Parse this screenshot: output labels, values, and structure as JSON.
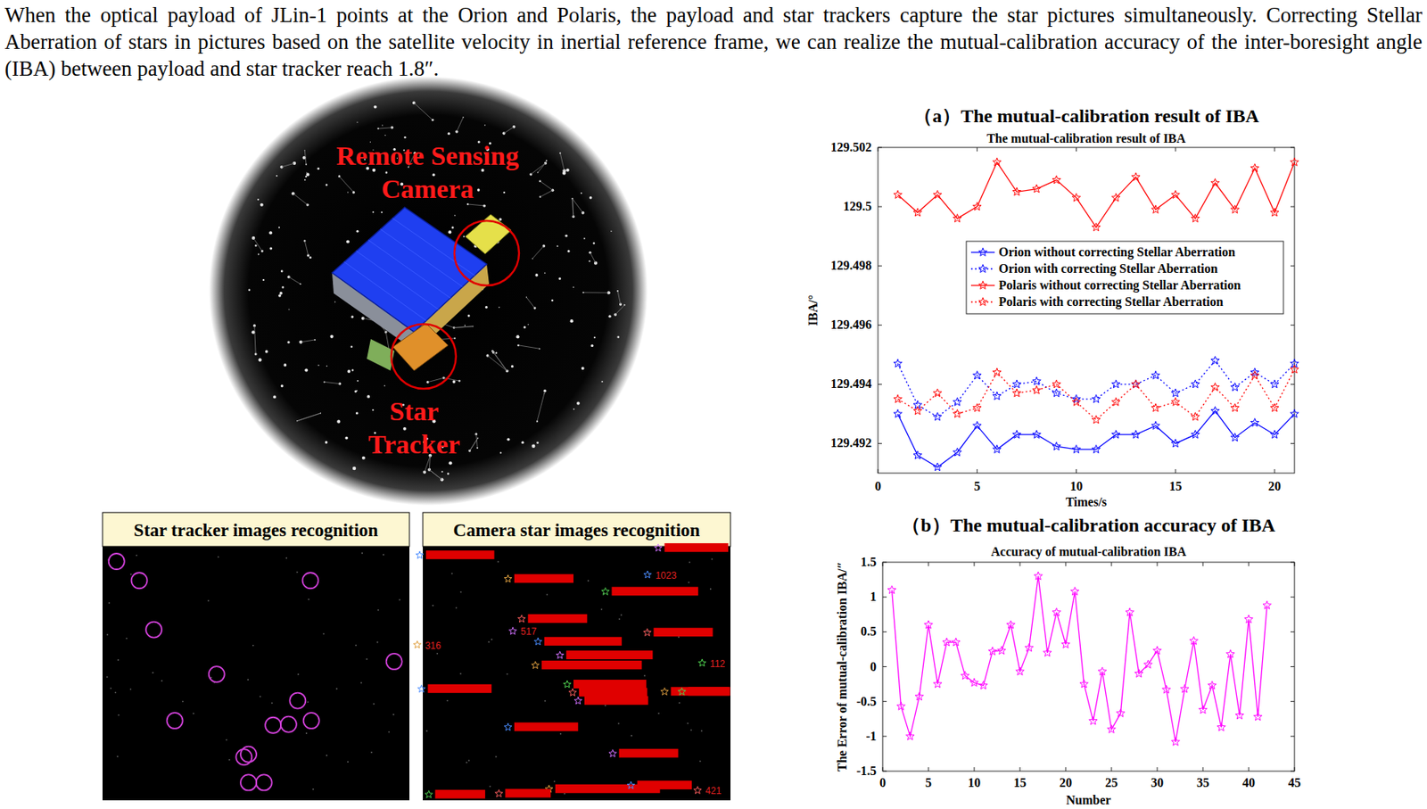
{
  "header": {
    "text": "When the optical payload of JLin-1 points at the Orion and Polaris, the payload and star trackers capture the star pictures simultaneously. Correcting Stellar Aberration of stars in pictures based on the satellite velocity in inertial reference frame, we can realize the mutual-calibration accuracy of  the inter-boresight angle (IBA) between payload and star tracker reach 1.8″."
  },
  "illustration": {
    "camera_label": [
      "Remote Sensing",
      "Camera"
    ],
    "tracker_label": [
      "Star",
      "Tracker"
    ]
  },
  "images": [
    {
      "title": "Star tracker images recognition"
    },
    {
      "title": "Camera star images recognition",
      "labels": [
        "1023",
        "517",
        "316",
        "112",
        "421"
      ]
    }
  ],
  "chart_data": [
    {
      "type": "line",
      "panel_label": "（a）The mutual-calibration result of IBA",
      "title": "The mutual-calibration result of IBA",
      "x_label": "Times/s",
      "y_label": "IBA/°",
      "x": [
        1,
        2,
        3,
        4,
        5,
        6,
        7,
        8,
        9,
        10,
        11,
        12,
        13,
        14,
        15,
        16,
        17,
        18,
        19,
        20,
        21
      ],
      "xlim": [
        0,
        21
      ],
      "xticks": [
        0,
        5,
        10,
        15,
        20
      ],
      "ylim": [
        129.491,
        129.502
      ],
      "yticks": [
        129.492,
        129.494,
        129.496,
        129.498,
        129.5,
        129.502
      ],
      "grid": false,
      "legend": "right",
      "series": [
        {
          "name": "Orion without correcting Stellar Aberration",
          "color": "#0000ff",
          "line_style": "solid",
          "marker": "star",
          "values": [
            129.493,
            129.4916,
            129.4912,
            129.4917,
            129.4926,
            129.4918,
            129.4923,
            129.4923,
            129.4919,
            129.4918,
            129.4918,
            129.4923,
            129.4923,
            129.4926,
            129.492,
            129.4923,
            129.4931,
            129.4922,
            129.4927,
            129.4923,
            129.493
          ]
        },
        {
          "name": "Orion with correcting Stellar Aberration",
          "color": "#0000ff",
          "line_style": "dotted",
          "marker": "star",
          "values": [
            129.4947,
            129.4933,
            129.4929,
            129.4934,
            129.4943,
            129.4936,
            129.494,
            129.4941,
            129.4937,
            129.4935,
            129.4935,
            129.494,
            129.494,
            129.4943,
            129.4937,
            129.494,
            129.4948,
            129.4939,
            129.4944,
            129.494,
            129.4947
          ]
        },
        {
          "name": "Polaris without correcting Stellar Aberration",
          "color": "#ff0000",
          "line_style": "solid",
          "marker": "star",
          "values": [
            129.5004,
            129.4998,
            129.5004,
            129.4996,
            129.5,
            129.5015,
            129.5005,
            129.5006,
            129.5009,
            129.5003,
            129.4993,
            129.5003,
            129.501,
            129.4999,
            129.5004,
            129.4996,
            129.5008,
            129.4999,
            129.5013,
            129.4998,
            129.5015
          ]
        },
        {
          "name": "Polaris with correcting Stellar Aberration",
          "color": "#ff0000",
          "line_style": "dotted",
          "marker": "star",
          "values": [
            129.4935,
            129.4931,
            129.4937,
            129.493,
            129.4932,
            129.4944,
            129.4937,
            129.4938,
            129.494,
            129.4934,
            129.4928,
            129.4934,
            129.494,
            129.4932,
            129.4934,
            129.4929,
            129.4939,
            129.4932,
            129.4943,
            129.4932,
            129.4945
          ]
        }
      ]
    },
    {
      "type": "line",
      "panel_label": "（b）The mutual-calibration accuracy of IBA",
      "title": "Accuracy of mutual-calibration IBA",
      "x_label": "Number",
      "y_label": "The Error of mutual-calibration IBA/″",
      "x": [
        1,
        2,
        3,
        4,
        5,
        6,
        7,
        8,
        9,
        10,
        11,
        12,
        13,
        14,
        15,
        16,
        17,
        18,
        19,
        20,
        21,
        22,
        23,
        24,
        25,
        26,
        27,
        28,
        29,
        30,
        31,
        32,
        33,
        34,
        35,
        36,
        37,
        38,
        39,
        40,
        41,
        42
      ],
      "xlim": [
        0,
        45
      ],
      "xticks": [
        0,
        5,
        10,
        15,
        20,
        25,
        30,
        35,
        40,
        45
      ],
      "ylim": [
        -1.5,
        1.5
      ],
      "yticks": [
        -1.5,
        -1,
        -0.5,
        0,
        0.5,
        1,
        1.5
      ],
      "grid": false,
      "color": "#ff00ff",
      "line_style": "solid",
      "marker": "star",
      "values": [
        1.1,
        -0.57,
        -1.0,
        -0.43,
        0.6,
        -0.25,
        0.35,
        0.35,
        -0.13,
        -0.23,
        -0.27,
        0.22,
        0.23,
        0.6,
        -0.07,
        0.27,
        1.3,
        0.2,
        0.78,
        0.32,
        1.08,
        -0.25,
        -0.78,
        -0.07,
        -0.9,
        -0.67,
        0.78,
        -0.1,
        0.03,
        0.23,
        -0.33,
        -1.08,
        -0.32,
        0.37,
        -0.62,
        -0.27,
        -0.87,
        0.18,
        -0.7,
        0.68,
        -0.72,
        0.88
      ]
    }
  ]
}
